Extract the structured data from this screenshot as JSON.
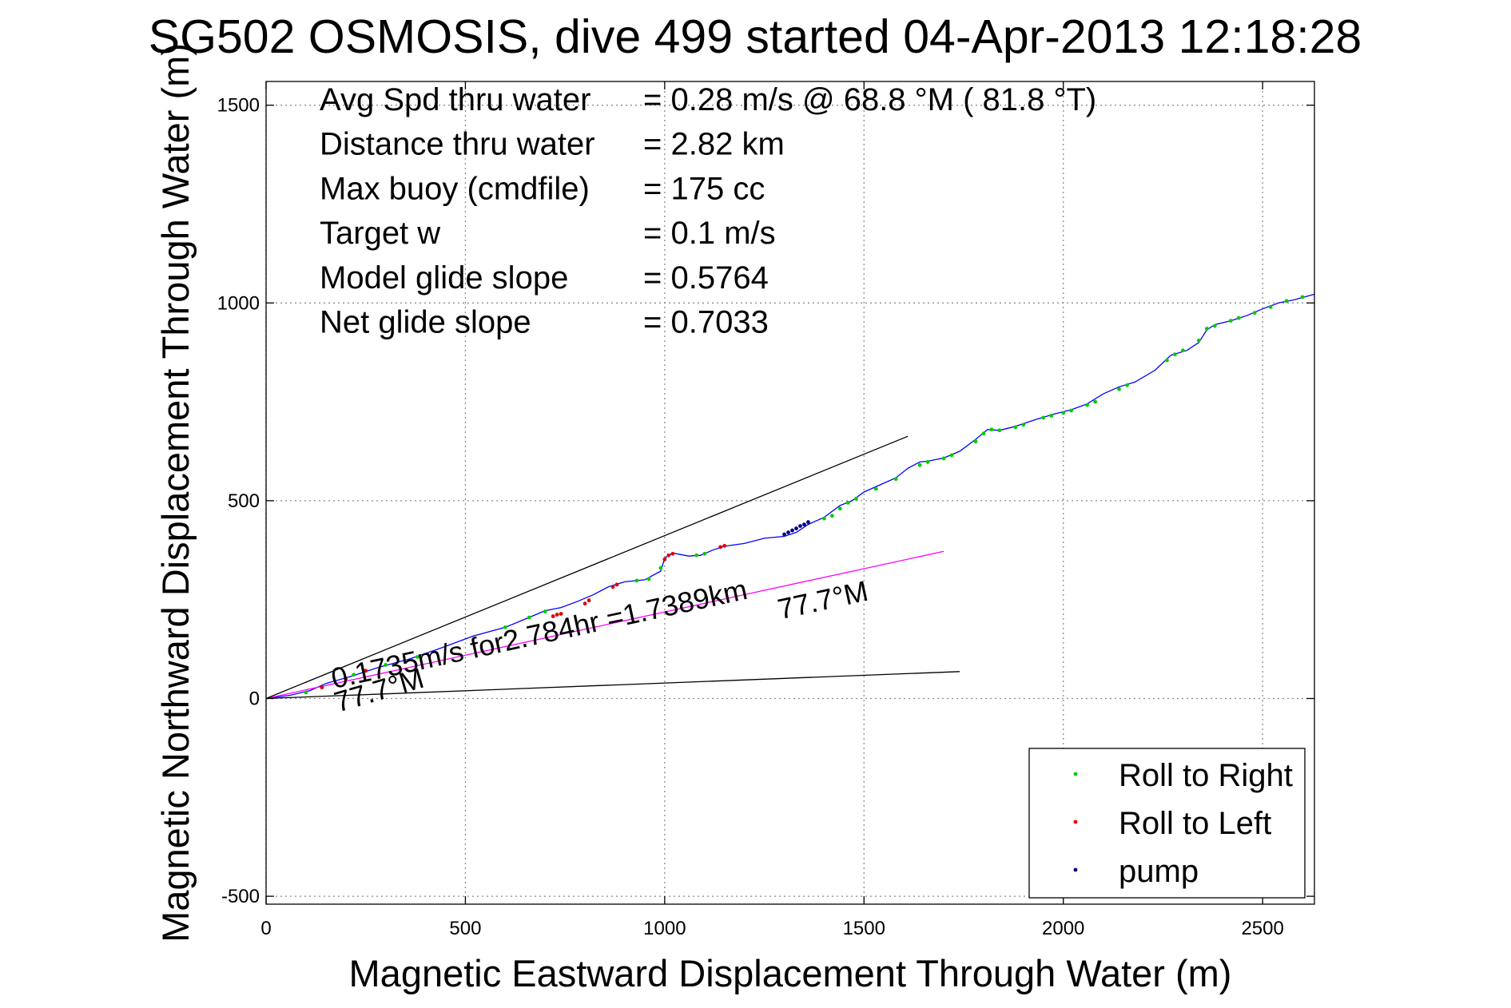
{
  "chart_data": {
    "type": "line",
    "title": "SG502 OSMOSIS, dive 499 started 04-Apr-2013 12:18:28",
    "xlabel": "Magnetic Eastward Displacement Through Water (m)",
    "ylabel": "Magnetic Northward Displacement Through Water (m)",
    "xlim": [
      0,
      2630
    ],
    "ylim": [
      -520,
      1560
    ],
    "xticks": [
      "0",
      "500",
      "1000",
      "1500",
      "2000",
      "2500"
    ],
    "yticks": [
      "-500",
      "0",
      "500",
      "1000",
      "1500"
    ],
    "grid": true,
    "legend_position": "bottom-right",
    "info_lines": [
      {
        "label": "Avg Spd thru water",
        "value": "=  0.28 m/s @  68.8 °M ( 81.8 °T)"
      },
      {
        "label": "Distance thru water",
        "value": "=  2.82 km"
      },
      {
        "label": "Max buoy (cmdfile)",
        "value": "= 175 cc"
      },
      {
        "label": "Target w",
        "value": "= 0.1 m/s"
      },
      {
        "label": "Model glide slope",
        "value": "= 0.5764"
      },
      {
        "label": "Net glide slope",
        "value": "= 0.7033"
      }
    ],
    "annotations": {
      "current_text": "0.1735m/s for2.784hr =1.7389km",
      "heading_far": "77.7°M",
      "heading_near": "77.7°M"
    },
    "series": [
      {
        "name": "",
        "color": "#0000ff",
        "x": [
          0,
          60,
          110,
          150,
          210,
          280,
          360,
          440,
          520,
          600,
          660,
          700,
          740,
          780,
          820,
          860,
          900,
          950,
          990,
          1000,
          1020,
          1060,
          1090,
          1120,
          1150,
          1200,
          1250,
          1300,
          1330,
          1360,
          1400,
          1440,
          1470,
          1500,
          1540,
          1580,
          1610,
          1640,
          1660,
          1700,
          1740,
          1780,
          1810,
          1840,
          1880,
          1930,
          1980,
          2020,
          2060,
          2100,
          2140,
          2180,
          2230,
          2270,
          2310,
          2340,
          2360,
          2380,
          2420,
          2460,
          2500,
          2540,
          2580,
          2630
        ],
        "y": [
          0,
          8,
          20,
          38,
          55,
          78,
          100,
          128,
          158,
          180,
          205,
          222,
          230,
          245,
          262,
          283,
          295,
          300,
          322,
          355,
          368,
          360,
          362,
          375,
          385,
          392,
          405,
          410,
          420,
          440,
          458,
          488,
          500,
          522,
          540,
          558,
          582,
          598,
          600,
          608,
          625,
          655,
          680,
          678,
          688,
          705,
          720,
          730,
          745,
          770,
          788,
          800,
          830,
          868,
          880,
          900,
          932,
          945,
          955,
          968,
          985,
          1000,
          1008,
          1022
        ]
      },
      {
        "name": "",
        "color": "#ff00ff",
        "x": [
          0,
          1700
        ],
        "y": [
          0,
          372
        ]
      },
      {
        "name": "",
        "color": "#000000",
        "x": [
          0,
          1610
        ],
        "y": [
          0,
          663
        ]
      },
      {
        "name": "",
        "color": "#000000",
        "x": [
          0,
          1740
        ],
        "y": [
          0,
          68
        ]
      },
      {
        "name": "Roll to Right",
        "color": "#00cc00",
        "marker": "dot",
        "x": [
          100,
          220,
          300,
          380,
          600,
          660,
          700,
          930,
          960,
          990,
          1080,
          1100,
          1400,
          1420,
          1440,
          1460,
          1480,
          1530,
          1580,
          1640,
          1660,
          1700,
          1720,
          1780,
          1800,
          1820,
          1840,
          1880,
          1900,
          1950,
          1970,
          2000,
          2020,
          2060,
          2080,
          2140,
          2160,
          2260,
          2280,
          2300,
          2340,
          2360,
          2380,
          2420,
          2440,
          2480,
          2520,
          2560,
          2600
        ],
        "y": [
          15,
          60,
          85,
          105,
          180,
          205,
          220,
          298,
          302,
          330,
          362,
          366,
          455,
          462,
          480,
          495,
          505,
          530,
          555,
          590,
          598,
          607,
          615,
          650,
          670,
          680,
          678,
          686,
          692,
          710,
          715,
          722,
          728,
          742,
          750,
          782,
          792,
          855,
          870,
          880,
          905,
          935,
          942,
          955,
          962,
          975,
          990,
          1005,
          1015
        ]
      },
      {
        "name": "Roll to Left",
        "color": "#dd0000",
        "marker": "dot",
        "x": [
          140,
          200,
          250,
          720,
          730,
          740,
          800,
          810,
          870,
          880,
          1000,
          1010,
          1020,
          1140,
          1150
        ],
        "y": [
          28,
          50,
          70,
          208,
          212,
          214,
          240,
          248,
          282,
          288,
          352,
          362,
          366,
          383,
          386
        ]
      },
      {
        "name": "pump",
        "color": "#000080",
        "marker": "dot",
        "x": [
          1300,
          1310,
          1320,
          1330,
          1340,
          1350,
          1360
        ],
        "y": [
          415,
          420,
          425,
          430,
          436,
          440,
          446
        ]
      }
    ]
  }
}
